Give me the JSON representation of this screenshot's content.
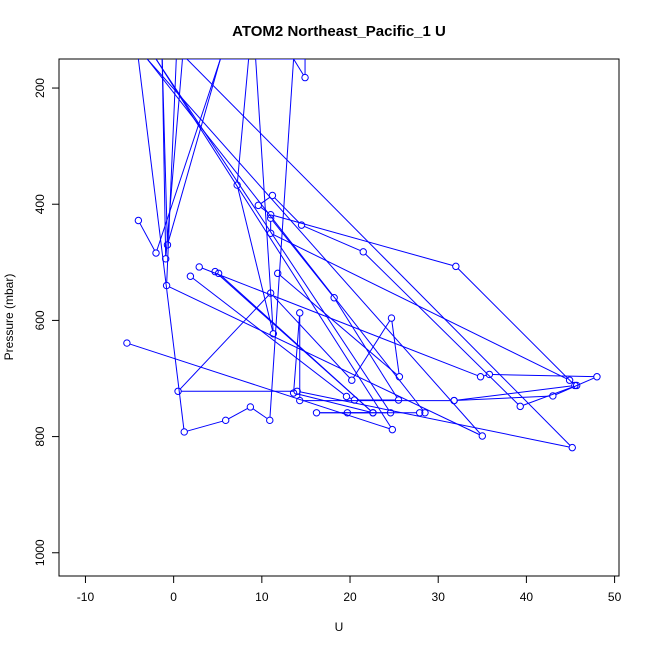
{
  "chart_data": {
    "type": "line",
    "title": "ATOM2 Northeast_Pacific_1 U",
    "xlabel": "U",
    "ylabel": "Pressure (mbar)",
    "xlim": [
      -13,
      50.5
    ],
    "ylim": [
      1040,
      150
    ],
    "y_reversed": true,
    "grid": false,
    "legend": "none",
    "line_color": "#0000ff",
    "marker": "open-circle",
    "x_ticks": [
      -10,
      0,
      10,
      20,
      30,
      40,
      50
    ],
    "y_ticks": [
      200,
      400,
      600,
      800,
      1000
    ],
    "series": [
      {
        "values": [
          {
            "x": -4.0,
            "y": 428
          },
          {
            "x": -2.0,
            "y": 484
          },
          {
            "x": 5.3,
            "y": 150
          },
          {
            "x": -0.7,
            "y": 470
          },
          {
            "x": -1.3,
            "y": 150
          },
          {
            "x": -0.9,
            "y": 494
          },
          {
            "x": 1.0,
            "y": 150
          },
          {
            "x": 8.5,
            "y": 150
          },
          {
            "x": 7.2,
            "y": 367
          },
          {
            "x": 11.3,
            "y": 623
          },
          {
            "x": 9.3,
            "y": 150
          },
          {
            "x": 14.9,
            "y": 150
          },
          {
            "x": 14.9,
            "y": 182
          },
          {
            "x": 13.6,
            "y": 150
          },
          {
            "x": 10.9,
            "y": 772
          },
          {
            "x": 8.7,
            "y": 749
          },
          {
            "x": 5.9,
            "y": 772
          },
          {
            "x": 1.2,
            "y": 792
          },
          {
            "x": -4.0,
            "y": 150
          }
        ]
      },
      {
        "values": [
          {
            "x": -5.3,
            "y": 639
          },
          {
            "x": 24.8,
            "y": 788
          },
          {
            "x": -2.0,
            "y": 150
          },
          {
            "x": 24.6,
            "y": 759
          },
          {
            "x": 16.2,
            "y": 759
          },
          {
            "x": 27.9,
            "y": 759
          },
          {
            "x": 28.5,
            "y": 759
          },
          {
            "x": -3.0,
            "y": 150
          },
          {
            "x": 35.0,
            "y": 799
          },
          {
            "x": -0.8,
            "y": 540
          },
          {
            "x": 0.3,
            "y": 150
          }
        ]
      },
      {
        "values": [
          {
            "x": 19.7,
            "y": 759
          },
          {
            "x": 22.6,
            "y": 759
          },
          {
            "x": 5.1,
            "y": 519
          },
          {
            "x": 4.7,
            "y": 516
          },
          {
            "x": 22.6,
            "y": 759
          },
          {
            "x": 13.6,
            "y": 725
          },
          {
            "x": 14.3,
            "y": 587
          },
          {
            "x": 14.3,
            "y": 738
          },
          {
            "x": 31.8,
            "y": 738
          },
          {
            "x": 43.0,
            "y": 730
          },
          {
            "x": 48.0,
            "y": 697
          },
          {
            "x": 35.8,
            "y": 693
          },
          {
            "x": 34.8,
            "y": 697
          },
          {
            "x": 2.9,
            "y": 508
          }
        ]
      },
      {
        "values": [
          {
            "x": 1.9,
            "y": 524
          },
          {
            "x": 19.6,
            "y": 731
          },
          {
            "x": 20.5,
            "y": 737
          },
          {
            "x": 25.5,
            "y": 737
          },
          {
            "x": 18.2,
            "y": 561
          },
          {
            "x": 11.0,
            "y": 424
          },
          {
            "x": 11.0,
            "y": 450
          },
          {
            "x": 44.9,
            "y": 703
          },
          {
            "x": 45.7,
            "y": 712
          },
          {
            "x": 39.3,
            "y": 748
          },
          {
            "x": 21.5,
            "y": 482
          },
          {
            "x": 14.5,
            "y": 436
          },
          {
            "x": 11.2,
            "y": 385
          },
          {
            "x": 9.6,
            "y": 402
          },
          {
            "x": 11.0,
            "y": 418
          },
          {
            "x": 32.0,
            "y": 507
          },
          {
            "x": 45.5,
            "y": 712
          },
          {
            "x": 31.8,
            "y": 738
          }
        ]
      },
      {
        "values": [
          {
            "x": 11.8,
            "y": 519
          },
          {
            "x": 25.6,
            "y": 697
          },
          {
            "x": 24.7,
            "y": 596
          },
          {
            "x": 20.2,
            "y": 703
          },
          {
            "x": 11.0,
            "y": 553
          },
          {
            "x": 0.5,
            "y": 722
          },
          {
            "x": 14.0,
            "y": 722
          },
          {
            "x": 45.2,
            "y": 819
          },
          {
            "x": 1.5,
            "y": 150
          }
        ]
      }
    ]
  }
}
